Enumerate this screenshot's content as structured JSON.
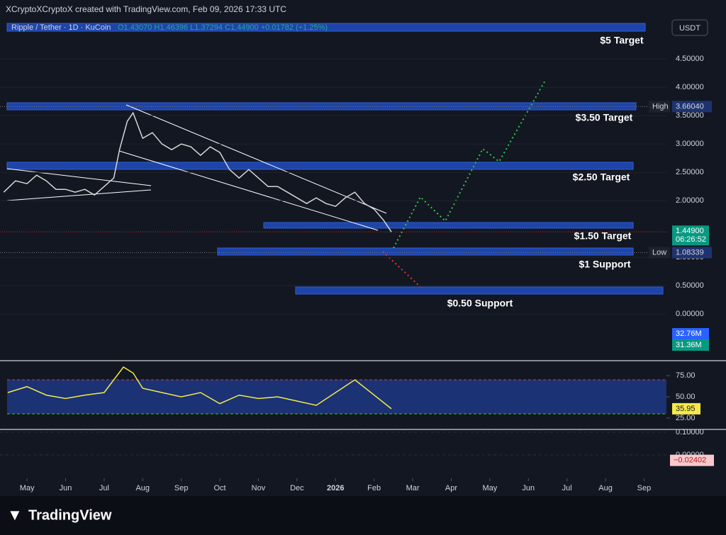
{
  "header": {
    "credit": "XCryptoXCryptoX created with TradingView.com, Feb 09, 2026 17:33 UTC",
    "symbol": "Ripple / Tether · 1D · KuCoin",
    "ohlc": "O1.43070 H1.46396 L1.37294 C1.44900 +0.01782 (+1.25%)",
    "currency": "USDT"
  },
  "chart_data": [
    {
      "type": "line",
      "name": "price",
      "color": "#d6d6d6",
      "x": [
        -0.6,
        -0.3,
        0,
        0.25,
        0.5,
        0.75,
        1,
        1.25,
        1.5,
        1.75,
        2,
        2.25,
        2.4,
        2.6,
        2.75,
        3,
        3.25,
        3.5,
        3.75,
        4,
        4.25,
        4.5,
        4.75,
        5,
        5.25,
        5.5,
        5.75,
        6,
        6.25,
        6.5,
        6.75,
        7,
        7.25,
        7.5,
        7.75,
        8,
        8.25,
        8.5,
        8.75,
        9,
        9.25,
        9.45
      ],
      "values": [
        2.15,
        2.35,
        2.3,
        2.45,
        2.35,
        2.2,
        2.2,
        2.15,
        2.2,
        2.1,
        2.25,
        2.4,
        2.9,
        3.4,
        3.55,
        3.1,
        3.2,
        3,
        2.9,
        3,
        2.95,
        2.8,
        2.95,
        2.85,
        2.55,
        2.4,
        2.55,
        2.4,
        2.25,
        2.25,
        2.15,
        2.05,
        1.95,
        2.05,
        1.95,
        1.9,
        2.05,
        2.15,
        1.95,
        1.85,
        1.65,
        1.449
      ],
      "xlim": [
        -0.7,
        16.58
      ],
      "xticks": [
        {
          "value": 0,
          "label": "May"
        },
        {
          "value": 1,
          "label": "Jun"
        },
        {
          "value": 2,
          "label": "Jul"
        },
        {
          "value": 3,
          "label": "Aug"
        },
        {
          "value": 4,
          "label": "Sep"
        },
        {
          "value": 5,
          "label": "Oct"
        },
        {
          "value": 6,
          "label": "Nov"
        },
        {
          "value": 7,
          "label": "Dec"
        },
        {
          "value": 8,
          "label": "2026"
        },
        {
          "value": 9,
          "label": "Feb"
        },
        {
          "value": 10,
          "label": "Mar"
        },
        {
          "value": 11,
          "label": "Apr"
        },
        {
          "value": 12,
          "label": "May"
        },
        {
          "value": 13,
          "label": "Jun"
        },
        {
          "value": 14,
          "label": "Jul"
        },
        {
          "value": 15,
          "label": "Aug"
        },
        {
          "value": 16,
          "label": "Sep"
        }
      ],
      "ylim": [
        -0.81,
        5.19
      ],
      "yticks": [
        {
          "value": 0,
          "label": "0.00000"
        },
        {
          "value": 0.5,
          "label": "0.50000"
        },
        {
          "value": 1,
          "label": "1.00000"
        },
        {
          "value": 2,
          "label": "2.00000"
        },
        {
          "value": 2.5,
          "label": "2.50000"
        },
        {
          "value": 3,
          "label": "3.00000"
        },
        {
          "value": 3.5,
          "label": "3.50000"
        },
        {
          "value": 4,
          "label": "4.00000"
        },
        {
          "value": 4.5,
          "label": "4.50000"
        }
      ],
      "annotations": [
        "$5 Target",
        "$3.50 Target",
        "$2.50 Target",
        "$1.50 Target",
        "$1 Support",
        "$0.50 Support"
      ],
      "high": {
        "label": "High",
        "value": 3.6604,
        "value_label": "3.66040"
      },
      "low": {
        "label": "Low",
        "value": 1.08339,
        "value_label": "1.08339"
      },
      "last": {
        "value": 1.449,
        "value_label": "1.44900",
        "countdown": "06:26:52"
      },
      "volume_labels": [
        "32.76M",
        "31.36M"
      ]
    },
    {
      "type": "line",
      "name": "RSI",
      "color": "#f5e94a",
      "x": [
        -0.5,
        0,
        0.5,
        1,
        1.5,
        2,
        2.5,
        2.75,
        3,
        3.5,
        4,
        4.5,
        5,
        5.5,
        6,
        6.5,
        7,
        7.5,
        8,
        8.5,
        9.45
      ],
      "values": [
        55,
        62,
        52,
        48,
        52,
        55,
        85,
        78,
        60,
        55,
        50,
        55,
        42,
        52,
        48,
        50,
        45,
        40,
        55,
        70,
        35.95
      ],
      "ylim": [
        12.5,
        91.7
      ],
      "yticks": [
        {
          "value": 25,
          "label": "25.00"
        },
        {
          "value": 50,
          "label": "50.00"
        },
        {
          "value": 75,
          "label": "75.00"
        }
      ],
      "last_label": "35.95"
    },
    {
      "type": "histogram",
      "name": "MACD",
      "ylim": [
        -0.103,
        0.109
      ],
      "yticks": [
        {
          "value": 0,
          "label": "0.00000"
        },
        {
          "value": 0.1,
          "label": "0.10000"
        }
      ],
      "last": {
        "value": -0.02402,
        "value_label": "−0.02402"
      }
    }
  ],
  "footer": {
    "brand": "TradingView"
  }
}
